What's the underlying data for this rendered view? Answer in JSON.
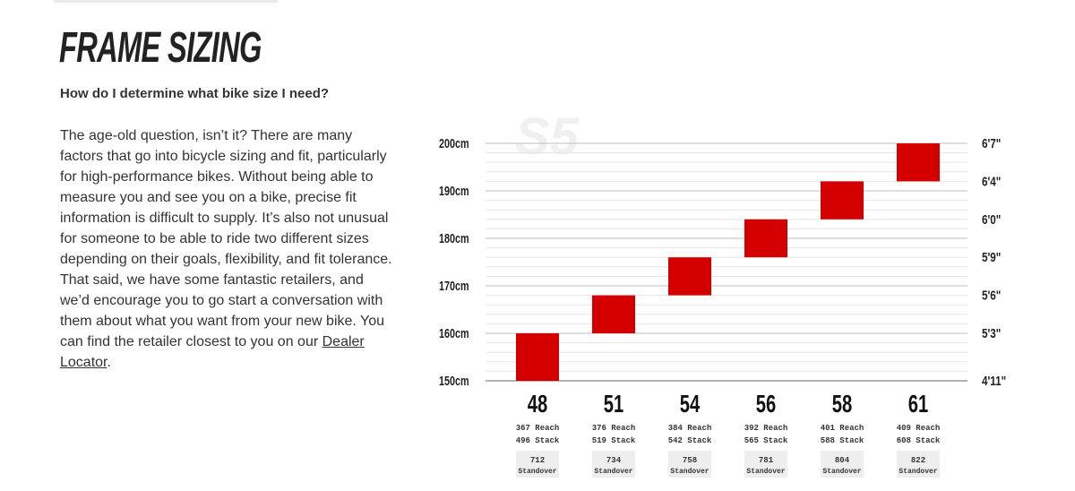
{
  "page": {
    "title": "FRAME SIZING",
    "question": "How do I determine what bike size I need?",
    "body": "The age-old question, isn’t it? There are many factors that go into bicycle sizing and fit, particularly for high-performance bikes. Without being able to measure you and see you on a bike, precise fit information is difficult to supply. It’s also not unusual for someone to be able to ride two different sizes depending on their goals, flexibility, and fit tolerance. That said, we have some fantastic retailers, and we’d encourage you to go start a conversation with them about what you want from your new bike. You can find the retailer closest to you on our",
    "link_text": "Dealer Locator",
    "body_end": "."
  },
  "chart_data": {
    "type": "bar",
    "watermark": "S5",
    "y_unit": "cm",
    "ylim": [
      150,
      200
    ],
    "y_ticks_left": [
      "150cm",
      "160cm",
      "170cm",
      "180cm",
      "190cm",
      "200cm"
    ],
    "y_ticks_right": [
      "4'11\"",
      "5'3\"",
      "5'6\"",
      "5'9\"",
      "6'0\"",
      "6'4\"",
      "6'7\""
    ],
    "y_ticks_right_cm": [
      150,
      160,
      168,
      176,
      184,
      192,
      200
    ],
    "grid": true,
    "bar_color": "#d40000",
    "categories": [
      "48",
      "51",
      "54",
      "56",
      "58",
      "61"
    ],
    "ranges": [
      [
        150,
        160
      ],
      [
        160,
        168
      ],
      [
        168,
        176
      ],
      [
        176,
        184
      ],
      [
        184,
        192
      ],
      [
        192,
        200
      ]
    ],
    "reach": [
      "367 Reach",
      "376 Reach",
      "384 Reach",
      "392 Reach",
      "401 Reach",
      "409 Reach"
    ],
    "stack": [
      "496 Stack",
      "519 Stack",
      "542 Stack",
      "565 Stack",
      "588 Stack",
      "608 Stack"
    ],
    "standover_values": [
      "712",
      "734",
      "758",
      "781",
      "804",
      "822"
    ],
    "standover_label": "Standover"
  }
}
